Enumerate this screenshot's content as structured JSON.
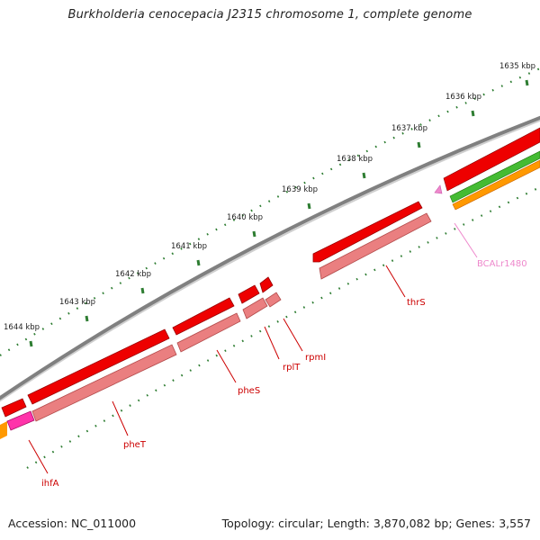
{
  "title": "Burkholderia cenocepacia J2315 chromosome 1, complete genome",
  "footer": {
    "accession": "Accession: NC_011000",
    "topology": "Topology: circular; Length: 3,870,082 bp; Genes: 3,557"
  },
  "scale_labels": [
    "1635 kbp",
    "1636 kbp",
    "1637 kbp",
    "1638 kbp",
    "1639 kbp",
    "1640 kbp",
    "1641 kbp",
    "1642 kbp",
    "1643 kbp",
    "1644 kbp"
  ],
  "genes": [
    {
      "name": "ihfA",
      "color": "#cc0000"
    },
    {
      "name": "pheT",
      "color": "#cc0000"
    },
    {
      "name": "pheS",
      "color": "#cc0000"
    },
    {
      "name": "rplT",
      "color": "#cc0000"
    },
    {
      "name": "rpmI",
      "color": "#cc0000"
    },
    {
      "name": "thrS",
      "color": "#cc0000"
    },
    {
      "name": "BCALr1480",
      "color": "#ee88cc"
    }
  ],
  "colors": {
    "backbone": "#808080",
    "cds": "#ee0000",
    "cds_light": "#ea7f80",
    "rna": "#ff33aa",
    "green": "#44bb33",
    "orange": "#ff9900",
    "ticks": "#2e7d32"
  }
}
